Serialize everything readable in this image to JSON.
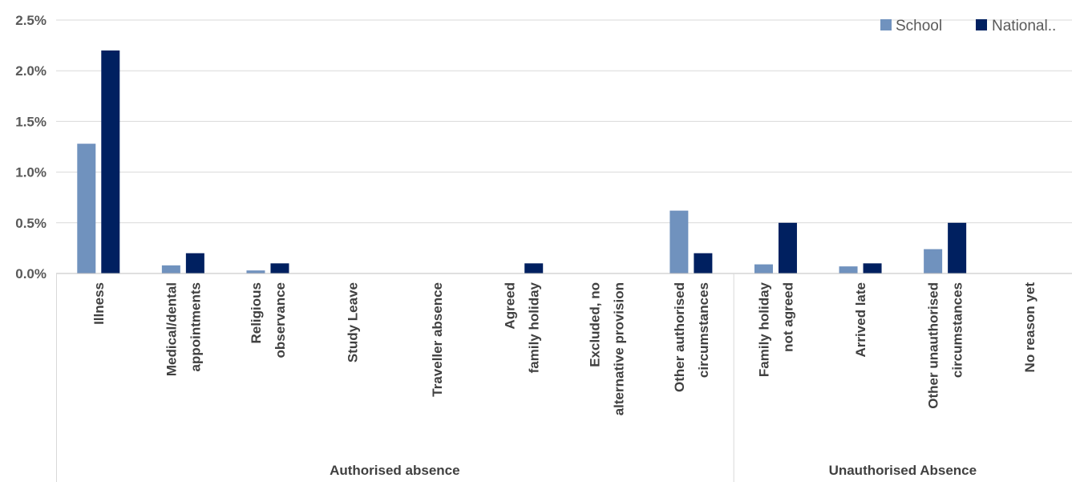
{
  "chart_data": {
    "type": "bar",
    "title": "",
    "xlabel": "",
    "ylabel": "",
    "ylim": [
      0,
      0.025
    ],
    "yticks": [
      "0.0%",
      "0.5%",
      "1.0%",
      "1.5%",
      "2.0%",
      "2.5%"
    ],
    "grid": true,
    "legend_position": "top-right",
    "categories": [
      [
        "Illness"
      ],
      [
        "Medical/dental",
        "appointments"
      ],
      [
        "Religious",
        "observance"
      ],
      [
        "Study Leave"
      ],
      [
        "Traveller absence"
      ],
      [
        "Agreed",
        "family holiday"
      ],
      [
        "Excluded, no",
        "alternative provision"
      ],
      [
        "Other authorised",
        "circumstances"
      ],
      [
        "Family holiday",
        "not agreed"
      ],
      [
        "Arrived late"
      ],
      [
        "Other unauthorised",
        "circumstances"
      ],
      [
        "No reason yet"
      ]
    ],
    "groups": [
      {
        "label": "Authorised absence",
        "count": 8
      },
      {
        "label": "Unauthorised Absence",
        "count": 4
      }
    ],
    "series": [
      {
        "name": "School",
        "color": "#7092be",
        "values": [
          0.0128,
          0.0008,
          0.0003,
          0,
          0,
          0,
          0,
          0.0062,
          0.0009,
          0.0007,
          0.0024,
          0
        ]
      },
      {
        "name": "National..",
        "color": "#002060",
        "values": [
          0.022,
          0.002,
          0.001,
          0,
          0,
          0.001,
          0,
          0.002,
          0.005,
          0.001,
          0.005,
          0
        ]
      }
    ]
  }
}
